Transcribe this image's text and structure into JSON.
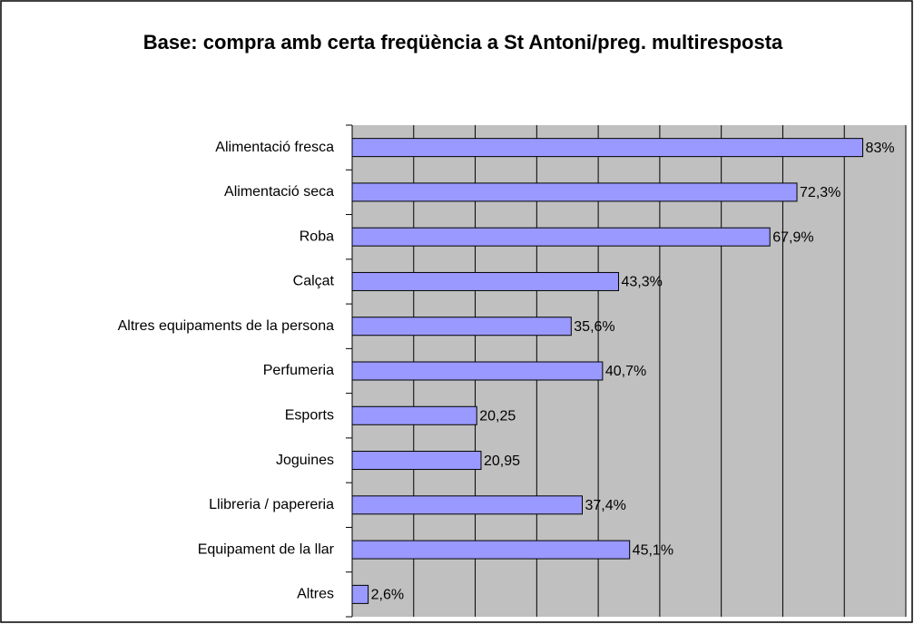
{
  "chart_data": {
    "type": "hbar",
    "title": "Base: compra amb certa freqüència a St Antoni/preg. multiresposta",
    "categories": [
      "Alimentació fresca",
      "Alimentació seca",
      "Roba",
      "Calçat",
      "Altres equipaments de la persona",
      "Perfumeria",
      "Esports",
      "Joguines",
      "Llibreria / papereria",
      "Equipament de la llar",
      "Altres"
    ],
    "values": [
      83,
      72.3,
      67.9,
      43.3,
      35.6,
      40.7,
      20.25,
      20.95,
      37.4,
      45.1,
      2.6
    ],
    "value_labels": [
      "83%",
      "72,3%",
      "67,9%",
      "43,3%",
      "35,6%",
      "40,7%",
      "20,25",
      "20,95",
      "37,4%",
      "45,1%",
      "2,6%"
    ],
    "color": "#9999ff",
    "xlim": [
      0,
      90
    ],
    "xticks": [
      0,
      10,
      20,
      30,
      40,
      50,
      60,
      70,
      80,
      90
    ],
    "grid": true
  }
}
